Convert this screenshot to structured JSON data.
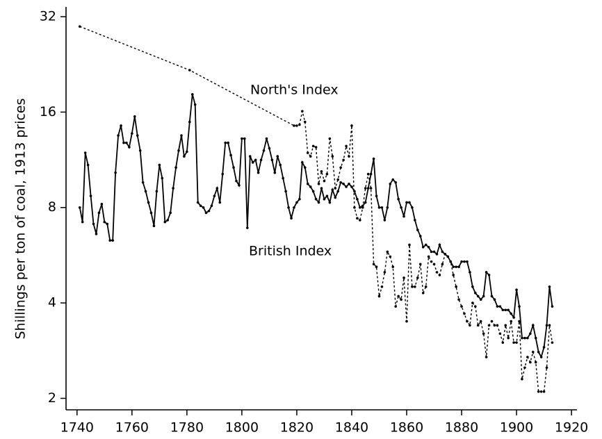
{
  "chart_data": {
    "type": "line",
    "y_label": "Shillings per ton of coal, 1913 prices",
    "log_y": true,
    "log_base": 2,
    "xlim": [
      1736,
      1922
    ],
    "ylim": [
      1.84,
      34
    ],
    "xticks": [
      1740,
      1760,
      1780,
      1800,
      1820,
      1840,
      1860,
      1880,
      1900,
      1920
    ],
    "yticks": [
      2,
      4,
      8,
      16,
      32
    ],
    "grid": false,
    "series": [
      {
        "name": "British Index",
        "color": "#000000",
        "line_style": "solid",
        "x": [
          1741,
          1742,
          1743,
          1744,
          1745,
          1746,
          1747,
          1748,
          1749,
          1750,
          1751,
          1752,
          1753,
          1754,
          1755,
          1756,
          1757,
          1758,
          1759,
          1760,
          1761,
          1762,
          1763,
          1764,
          1765,
          1766,
          1767,
          1768,
          1769,
          1770,
          1771,
          1772,
          1773,
          1774,
          1775,
          1776,
          1777,
          1778,
          1779,
          1780,
          1781,
          1782,
          1783,
          1784,
          1785,
          1786,
          1787,
          1788,
          1789,
          1790,
          1791,
          1792,
          1793,
          1794,
          1795,
          1796,
          1797,
          1798,
          1799,
          1800,
          1801,
          1802,
          1803,
          1804,
          1805,
          1806,
          1807,
          1808,
          1809,
          1810,
          1811,
          1812,
          1813,
          1814,
          1815,
          1816,
          1817,
          1818,
          1819,
          1820,
          1821,
          1822,
          1823,
          1824,
          1825,
          1826,
          1827,
          1828,
          1829,
          1830,
          1831,
          1832,
          1833,
          1834,
          1835,
          1836,
          1837,
          1838,
          1839,
          1840,
          1841,
          1842,
          1843,
          1844,
          1845,
          1846,
          1847,
          1848,
          1849,
          1850,
          1851,
          1852,
          1853,
          1854,
          1855,
          1856,
          1857,
          1858,
          1859,
          1860,
          1861,
          1862,
          1863,
          1864,
          1865,
          1866,
          1867,
          1868,
          1869,
          1870,
          1871,
          1872,
          1873,
          1874,
          1875,
          1876,
          1877,
          1878,
          1879,
          1880,
          1881,
          1882,
          1883,
          1884,
          1885,
          1886,
          1887,
          1888,
          1889,
          1890,
          1891,
          1892,
          1893,
          1894,
          1895,
          1896,
          1897,
          1898,
          1899,
          1900,
          1901,
          1902,
          1903,
          1904,
          1905,
          1906,
          1907,
          1908,
          1909,
          1910,
          1911,
          1912,
          1913
        ],
        "values": [
          8.0,
          7.2,
          11.9,
          10.9,
          8.7,
          7.1,
          6.6,
          7.7,
          8.2,
          7.2,
          7.1,
          6.3,
          6.3,
          10.3,
          13.5,
          14.5,
          12.8,
          12.8,
          12.4,
          13.7,
          15.5,
          13.5,
          12.1,
          9.6,
          9.0,
          8.3,
          7.7,
          7.0,
          9.0,
          10.9,
          9.9,
          7.2,
          7.3,
          7.7,
          9.2,
          10.7,
          12.1,
          13.5,
          11.6,
          12.0,
          14.9,
          18.2,
          16.9,
          8.3,
          8.1,
          8.0,
          7.7,
          7.8,
          8.1,
          8.7,
          9.2,
          8.3,
          10.2,
          12.8,
          12.8,
          11.7,
          10.7,
          9.7,
          9.4,
          13.2,
          13.2,
          6.9,
          11.6,
          11.1,
          11.3,
          10.3,
          11.3,
          12.1,
          13.2,
          12.3,
          11.3,
          10.3,
          11.6,
          10.9,
          9.9,
          9.0,
          8.0,
          7.4,
          8.0,
          8.3,
          8.5,
          11.1,
          10.7,
          9.5,
          9.3,
          9.0,
          8.5,
          8.3,
          9.2,
          8.5,
          8.7,
          8.3,
          9.1,
          8.6,
          9.0,
          9.6,
          9.5,
          9.3,
          9.5,
          9.3,
          9.0,
          8.5,
          8.0,
          8.1,
          8.3,
          9.2,
          10.2,
          11.4,
          8.7,
          8.0,
          8.0,
          7.3,
          8.0,
          9.5,
          9.8,
          9.6,
          8.5,
          8.0,
          7.5,
          8.3,
          8.3,
          8.0,
          7.3,
          6.8,
          6.5,
          6.0,
          6.1,
          6.0,
          5.8,
          5.8,
          5.7,
          6.1,
          5.8,
          5.7,
          5.6,
          5.4,
          5.2,
          5.2,
          5.2,
          5.4,
          5.4,
          5.4,
          5.0,
          4.5,
          4.3,
          4.2,
          4.1,
          4.2,
          5.0,
          4.9,
          4.2,
          4.1,
          3.9,
          3.9,
          3.8,
          3.8,
          3.8,
          3.7,
          3.6,
          4.4,
          3.9,
          3.1,
          3.1,
          3.1,
          3.2,
          3.4,
          3.1,
          2.8,
          2.7,
          2.9,
          3.4,
          4.5,
          3.9
        ]
      },
      {
        "name": "North's Index",
        "color": "#000000",
        "line_style": "dotted",
        "x": [
          1741,
          1781,
          1819,
          1820,
          1821,
          1822,
          1823,
          1824,
          1825,
          1826,
          1827,
          1828,
          1829,
          1830,
          1831,
          1832,
          1833,
          1834,
          1835,
          1836,
          1837,
          1838,
          1839,
          1840,
          1841,
          1842,
          1843,
          1844,
          1845,
          1846,
          1847,
          1848,
          1849,
          1850,
          1851,
          1852,
          1853,
          1854,
          1855,
          1856,
          1857,
          1858,
          1859,
          1860,
          1861,
          1862,
          1863,
          1864,
          1865,
          1866,
          1867,
          1868,
          1869,
          1870,
          1871,
          1872,
          1873,
          1874,
          1875,
          1876,
          1877,
          1878,
          1879,
          1880,
          1881,
          1882,
          1883,
          1884,
          1885,
          1886,
          1887,
          1888,
          1889,
          1890,
          1891,
          1892,
          1893,
          1894,
          1895,
          1896,
          1897,
          1898,
          1899,
          1900,
          1901,
          1902,
          1903,
          1904,
          1905,
          1906,
          1907,
          1908,
          1909,
          1910,
          1911,
          1912,
          1913
        ],
        "values": [
          29.8,
          21.7,
          14.5,
          14.5,
          14.6,
          16.1,
          14.9,
          11.9,
          11.6,
          12.5,
          12.4,
          9.5,
          10.4,
          9.7,
          10.2,
          13.2,
          11.6,
          9.2,
          9.8,
          10.7,
          11.3,
          12.5,
          11.6,
          14.5,
          8.0,
          7.4,
          7.3,
          8.0,
          9.2,
          10.2,
          9.2,
          5.3,
          5.2,
          4.2,
          4.5,
          5.0,
          5.8,
          5.6,
          5.2,
          3.9,
          4.2,
          4.1,
          4.8,
          3.5,
          6.1,
          4.5,
          4.5,
          4.8,
          5.3,
          4.3,
          4.5,
          5.6,
          5.4,
          5.3,
          5.0,
          4.9,
          5.3,
          5.7,
          5.6,
          5.4,
          4.9,
          4.5,
          4.1,
          3.9,
          3.7,
          3.5,
          3.4,
          4.0,
          3.9,
          3.4,
          3.5,
          3.2,
          2.7,
          3.4,
          3.5,
          3.4,
          3.4,
          3.2,
          3.0,
          3.4,
          3.1,
          3.5,
          3.0,
          3.0,
          3.5,
          2.3,
          2.5,
          2.7,
          2.6,
          2.8,
          2.6,
          2.1,
          2.1,
          2.1,
          2.5,
          3.4,
          3.0
        ]
      }
    ]
  }
}
